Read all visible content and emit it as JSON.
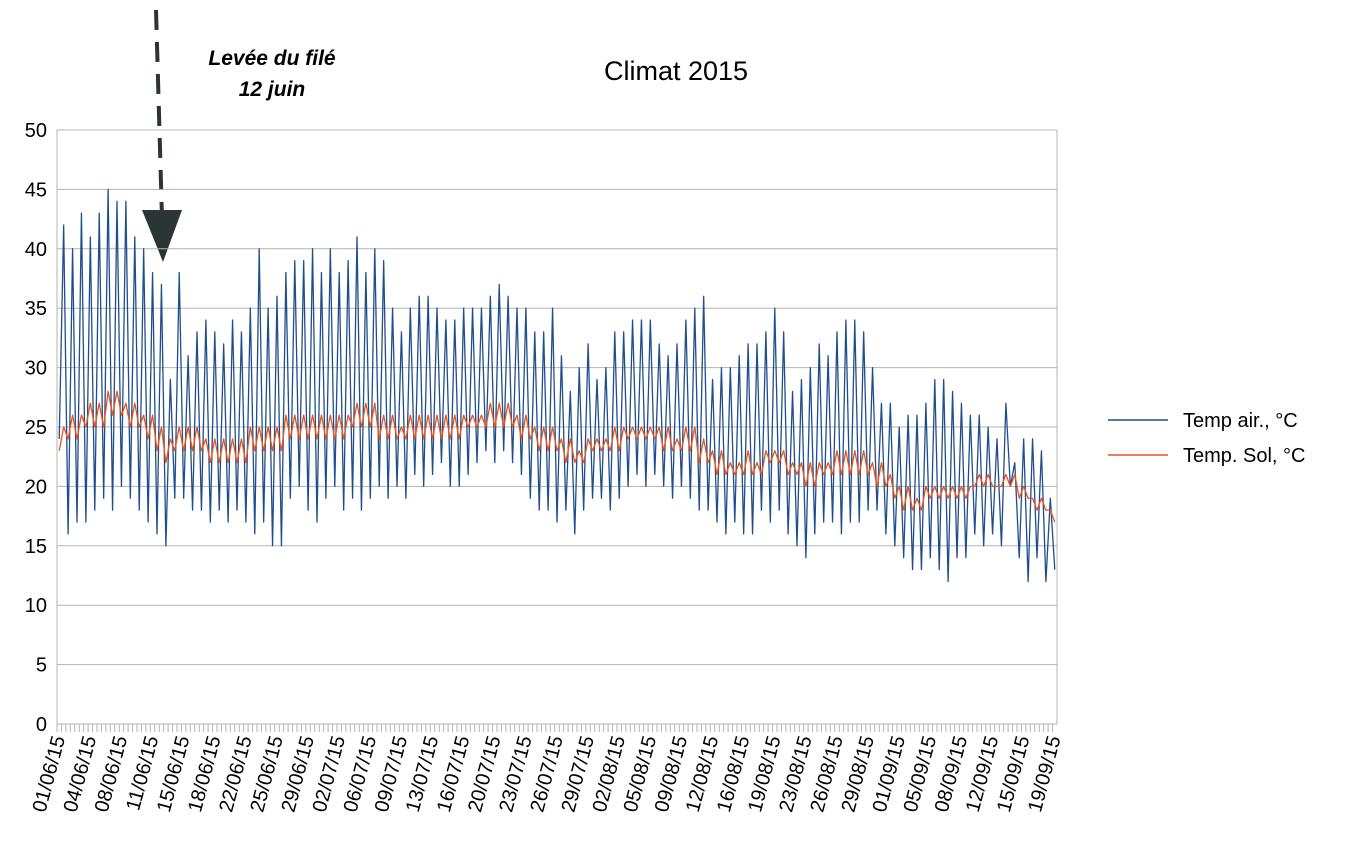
{
  "chart_data": {
    "type": "line",
    "title": "Climat 2015",
    "annotation": [
      "Levée du filé",
      "12 juin"
    ],
    "categories": [
      "01/06/15",
      null,
      null,
      null,
      null,
      null,
      null,
      "04/06/15",
      null,
      null,
      null,
      null,
      null,
      null,
      "08/06/15",
      null,
      null,
      null,
      null,
      null,
      null,
      "11/06/15",
      null,
      null,
      null,
      null,
      null,
      null,
      "15/06/15",
      null,
      null,
      null,
      null,
      null,
      null,
      "18/06/15",
      null,
      null,
      null,
      null,
      null,
      null,
      "22/06/15",
      null,
      null,
      null,
      null,
      null,
      null,
      "25/06/15",
      null,
      null,
      null,
      null,
      null,
      null,
      "29/06/15",
      null,
      null,
      null,
      null,
      null,
      null,
      "02/07/15",
      null,
      null,
      null,
      null,
      null,
      null,
      "06/07/15",
      null,
      null,
      null,
      null,
      null,
      null,
      "09/07/15",
      null,
      null,
      null,
      null,
      null,
      null,
      "13/07/15",
      null,
      null,
      null,
      null,
      null,
      null,
      "16/07/15",
      null,
      null,
      null,
      null,
      null,
      null,
      "20/07/15",
      null,
      null,
      null,
      null,
      null,
      null,
      "23/07/15",
      null,
      null,
      null,
      null,
      null,
      null,
      "26/07/15",
      null,
      null,
      null,
      null,
      null,
      null,
      "29/07/15",
      null,
      null,
      null,
      null,
      null,
      null,
      "02/08/15",
      null,
      null,
      null,
      null,
      null,
      null,
      "05/08/15",
      null,
      null,
      null,
      null,
      null,
      null,
      "09/08/15",
      null,
      null,
      null,
      null,
      null,
      null,
      "12/08/15",
      null,
      null,
      null,
      null,
      null,
      null,
      "16/08/15",
      null,
      null,
      null,
      null,
      null,
      null,
      "19/08/15",
      null,
      null,
      null,
      null,
      null,
      null,
      "23/08/15",
      null,
      null,
      null,
      null,
      null,
      null,
      "26/08/15",
      null,
      null,
      null,
      null,
      null,
      null,
      "29/08/15",
      null,
      null,
      null,
      null,
      null,
      null,
      "01/09/15",
      null,
      null,
      null,
      null,
      null,
      null,
      "05/09/15",
      null,
      null,
      null,
      null,
      null,
      null,
      "08/09/15",
      null,
      null,
      null,
      null,
      null,
      null,
      "12/09/15",
      null,
      null,
      null,
      null,
      null,
      null,
      "15/09/15",
      null,
      null,
      null,
      null,
      null,
      null,
      "19/09/15"
    ],
    "series": [
      {
        "name": "Temp air., °C",
        "color": "#1f4e8c",
        "values": [
          24,
          42,
          16,
          40,
          17,
          43,
          17,
          41,
          18,
          43,
          19,
          45,
          18,
          44,
          20,
          44,
          19,
          41,
          18,
          40,
          17,
          38,
          16,
          37,
          15,
          29,
          19,
          38,
          19,
          31,
          18,
          33,
          18,
          34,
          17,
          33,
          18,
          32,
          17,
          34,
          18,
          33,
          17,
          35,
          16,
          40,
          17,
          35,
          15,
          36,
          15,
          38,
          19,
          39,
          20,
          39,
          18,
          40,
          17,
          38,
          19,
          40,
          20,
          38,
          18,
          39,
          19,
          41,
          18,
          38,
          19,
          40,
          20,
          39,
          19,
          35,
          20,
          33,
          19,
          35,
          21,
          36,
          20,
          36,
          21,
          35,
          22,
          34,
          20,
          34,
          20,
          35,
          21,
          35,
          22,
          35,
          23,
          36,
          22,
          37,
          23,
          36,
          22,
          35,
          21,
          35,
          19,
          33,
          18,
          33,
          18,
          35,
          17,
          31,
          18,
          28,
          16,
          30,
          18,
          32,
          19,
          29,
          19,
          30,
          18,
          33,
          19,
          33,
          20,
          34,
          21,
          34,
          20,
          34,
          21,
          32,
          20,
          31,
          19,
          32,
          20,
          34,
          19,
          35,
          18,
          36,
          18,
          29,
          17,
          30,
          16,
          30,
          17,
          31,
          16,
          32,
          16,
          32,
          18,
          33,
          17,
          35,
          18,
          33,
          16,
          28,
          15,
          29,
          14,
          30,
          16,
          32,
          17,
          31,
          17,
          33,
          16,
          34,
          17,
          34,
          17,
          33,
          18,
          30,
          18,
          27,
          16,
          27,
          15,
          25,
          14,
          26,
          13,
          26,
          13,
          27,
          14,
          29,
          13,
          29,
          12,
          28,
          14,
          27,
          14,
          26,
          16,
          26,
          15,
          25,
          16,
          24,
          15,
          27,
          20,
          22,
          14,
          24,
          12,
          24,
          14,
          23,
          12,
          19,
          13
        ]
      },
      {
        "name": "Temp. Sol, °C",
        "color": "#e8541e",
        "values": [
          23,
          25,
          24,
          26,
          24,
          26,
          25,
          27,
          25,
          27,
          25,
          28,
          26,
          28,
          26,
          27,
          25,
          27,
          25,
          26,
          24,
          26,
          23,
          25,
          22,
          24,
          23,
          25,
          23,
          25,
          23,
          25,
          23,
          24,
          22,
          24,
          22,
          24,
          22,
          24,
          22,
          24,
          22,
          25,
          23,
          25,
          23,
          25,
          23,
          25,
          23,
          26,
          24,
          26,
          24,
          26,
          24,
          26,
          24,
          26,
          24,
          26,
          24,
          26,
          24,
          26,
          25,
          27,
          25,
          27,
          25,
          27,
          24,
          26,
          24,
          26,
          24,
          25,
          24,
          26,
          24,
          26,
          24,
          26,
          24,
          26,
          24,
          26,
          24,
          26,
          24,
          26,
          25,
          26,
          25,
          26,
          25,
          27,
          25,
          27,
          25,
          27,
          25,
          26,
          24,
          26,
          24,
          25,
          23,
          25,
          23,
          25,
          23,
          24,
          22,
          24,
          22,
          23,
          22,
          24,
          23,
          24,
          23,
          24,
          23,
          25,
          23,
          25,
          24,
          25,
          24,
          25,
          24,
          25,
          24,
          25,
          23,
          25,
          23,
          24,
          23,
          25,
          23,
          25,
          22,
          24,
          22,
          23,
          21,
          23,
          21,
          22,
          21,
          22,
          21,
          23,
          21,
          22,
          21,
          23,
          22,
          23,
          22,
          23,
          21,
          22,
          21,
          22,
          20,
          22,
          20,
          22,
          21,
          22,
          21,
          23,
          21,
          23,
          21,
          23,
          21,
          23,
          21,
          22,
          20,
          22,
          20,
          21,
          19,
          20,
          18,
          20,
          18,
          19,
          18,
          20,
          19,
          20,
          19,
          20,
          19,
          20,
          19,
          20,
          19,
          20,
          20,
          21,
          20,
          21,
          20,
          20,
          20,
          21,
          20,
          21,
          19,
          20,
          19,
          19,
          18,
          19,
          18,
          18,
          17
        ]
      }
    ],
    "ylim": [
      0,
      50
    ],
    "yticks": [
      0,
      5,
      10,
      15,
      20,
      25,
      30,
      35,
      40,
      45,
      50
    ],
    "grid": true,
    "legend": "right"
  }
}
